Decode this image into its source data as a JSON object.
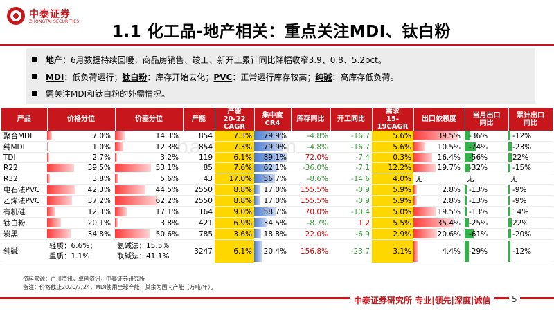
{
  "brand": {
    "name_cn": "中泰证券",
    "name_en": "ZHONGTAI SECURITIES",
    "colors": {
      "accent": "#c8161d"
    }
  },
  "page_title": "1.1 化工品-地产相关：重点关注MDI、钛白粉",
  "bullets": {
    "b1_label": "地产",
    "b1_text": "：6月数据持续回暖，商品房销售、竣工、新开工累计同比降幅收窄3.9、0.8、5.2pct。",
    "b2_l1": "MDI",
    "b2_t1": "：低负荷运行；",
    "b2_l2": "钛白粉",
    "b2_t2": "：库存开始去化；",
    "b2_l3": "PVC",
    "b2_t3": "：正常运行库存较高；",
    "b2_l4": "纯碱",
    "b2_t4": "：高库存低负荷。",
    "b3_text": "需关注MDI和钛白粉的外需情况。"
  },
  "table": {
    "headers": [
      "产品",
      "价格分位",
      "价差分位",
      "产能",
      "产能\n20-22 CAGR",
      "集中度\nCR4",
      "库存同比",
      "开工同比",
      "需求\n15-19CAGR",
      "出口依赖度",
      "当月出口\n同比",
      "累计出口\n同比"
    ],
    "rows": [
      {
        "name": "聚合MDI",
        "price_pct": "7.0%",
        "price_v": 7.0,
        "spread_pct": "14.3%",
        "spread_v": 14.3,
        "capacity": "854",
        "cap_cagr": "7.3%",
        "cr4": "79.9%",
        "cr4_v": 79.9,
        "inv_yoy": "-4.8%",
        "op_yoy": "-16.7",
        "demand": "5.6%",
        "export_dep": "39.5%",
        "export_dep_v": 39.5,
        "month_yoy": "-36%",
        "cum_yoy": "-12%"
      },
      {
        "name": "纯MDI",
        "price_pct": "1.0%",
        "price_v": 1.0,
        "spread_pct": "12.3%",
        "spread_v": 12.3,
        "capacity": "854",
        "cap_cagr": "7.3%",
        "cr4": "79.9%",
        "cr4_v": 79.9,
        "inv_yoy": "-4.8%",
        "op_yoy": "-16.7",
        "demand": "5.6%",
        "export_dep": "10.5%",
        "export_dep_v": 10.5,
        "month_yoy": "-74%",
        "cum_yoy": "-23%"
      },
      {
        "name": "TDI",
        "price_pct": "2.7%",
        "price_v": 2.7,
        "spread_pct": "3.2%",
        "spread_v": 3.2,
        "capacity": "119",
        "cap_cagr": "6.1%",
        "cr4": "89.1%",
        "cr4_v": 89.1,
        "inv_yoy": "72.0%",
        "op_yoy": "-7.4",
        "demand": "0.3%",
        "export_dep": "16.4%",
        "export_dep_v": 16.4,
        "month_yoy": "-56%",
        "cum_yoy": "22%"
      },
      {
        "name": "R22",
        "price_pct": "39.5%",
        "price_v": 39.5,
        "spread_pct": "53.1%",
        "spread_v": 53.1,
        "capacity": "85",
        "cap_cagr": "7.6%",
        "cr4": "62.1%",
        "cr4_v": 62.1,
        "inv_yoy": "-36.0%",
        "op_yoy": "-7.1",
        "demand": "12.2%",
        "export_dep": "19.7%",
        "export_dep_v": 19.7,
        "month_yoy": "-32%",
        "cum_yoy": "-15%"
      },
      {
        "name": "R32",
        "price_pct": "3.8%",
        "price_v": 3.8,
        "spread_pct": "5.6%",
        "spread_v": 5.6,
        "capacity": "43",
        "cap_cagr": "17.0%",
        "cr4": "56.7%",
        "cr4_v": 56.7,
        "inv_yoy": "-8.6%",
        "op_yoy": "-14.6",
        "demand": "4.0%",
        "export_dep": "无",
        "export_dep_v": 0,
        "month_yoy": "无",
        "cum_yoy": "无"
      },
      {
        "name": "电石法PVC",
        "price_pct": "42.3%",
        "price_v": 42.3,
        "spread_pct": "44.5%",
        "spread_v": 44.5,
        "capacity": "2550",
        "cap_cagr": "8.8%",
        "cr4": "17.0%",
        "cr4_v": 17.0,
        "inv_yoy": "155.5%",
        "op_yoy": "-0.9",
        "demand": "5.9%",
        "export_dep": "2.8%",
        "export_dep_v": 2.8,
        "month_yoy": "-13%",
        "cum_yoy": "-9%"
      },
      {
        "name": "乙烯法PVC",
        "price_pct": "37.2%",
        "price_v": 37.2,
        "spread_pct": "62.2%",
        "spread_v": 62.2,
        "capacity": "2550",
        "cap_cagr": "8.8%",
        "cr4": "17.0%",
        "cr4_v": 17.0,
        "inv_yoy": "155.5%",
        "op_yoy": "-0.9",
        "demand": "5.9%",
        "export_dep": "2.8%",
        "export_dep_v": 2.8,
        "month_yoy": "-13%",
        "cum_yoy": "-9%"
      },
      {
        "name": "有机硅",
        "price_pct": "12.3%",
        "price_v": 12.3,
        "spread_pct": "17.1%",
        "spread_v": 17.1,
        "capacity": "164",
        "cap_cagr": "9.0%",
        "cr4": "58.7%",
        "cr4_v": 58.7,
        "inv_yoy": "70.0%",
        "op_yoy": "-10.4",
        "demand": "5.0%",
        "export_dep": "19.5%",
        "export_dep_v": 19.5,
        "month_yoy": "-13%",
        "cum_yoy": "14%"
      },
      {
        "name": "钛白粉",
        "price_pct": "20.1%",
        "price_v": 20.1,
        "spread_pct": "3.8%",
        "spread_v": 3.8,
        "capacity": "421",
        "cap_cagr": "6.9%",
        "cr4": "34.5%",
        "cr4_v": 34.5,
        "inv_yoy": "-8.7%",
        "op_yoy": "1.2",
        "demand": "5.5%",
        "export_dep": "35.4%",
        "export_dep_v": 35.4,
        "month_yoy": "-25%",
        "cum_yoy": "22%"
      },
      {
        "name": "炭黑",
        "price_pct": "34.8%",
        "price_v": 34.8,
        "spread_pct": "50.6%",
        "spread_v": 50.6,
        "capacity": "785",
        "cap_cagr": "3.6%",
        "cr4": "18.8%",
        "cr4_v": 18.8,
        "inv_yoy": "22.0%",
        "op_yoy": "-6.9",
        "demand": "2.9%",
        "export_dep": "20.6%",
        "export_dep_v": 20.6,
        "month_yoy": "-61%",
        "cum_yoy": "-20%"
      },
      {
        "name": "纯碱",
        "price_l1": "轻质：6.6%；",
        "price_l2": "重质：1.1%",
        "spread_l1": "氨碱法：15.5%",
        "spread_l2": "联碱法：41.1%",
        "capacity": "3247",
        "cap_cagr": "6.1%",
        "cr4": "20.4%",
        "cr4_v": 20.4,
        "inv_yoy": "156.8%",
        "op_yoy": "-23.7",
        "demand": "3.1%",
        "export_dep": "4.4%",
        "export_dep_v": 4.4,
        "month_yoy": "-29%",
        "cum_yoy": "-12%"
      }
    ]
  },
  "notes": {
    "n1": "资料来源：百川资讯，卓创资讯，中泰证券研究所",
    "n2": "备注：价格截止2020/7/24，MDI使用全球产能，其余为国内产能（万吨/年）。"
  },
  "footer": {
    "text": "中泰证券研究所 专业|领先|深度|诚信",
    "page": "5"
  },
  "watermark": "baidu8.com"
}
